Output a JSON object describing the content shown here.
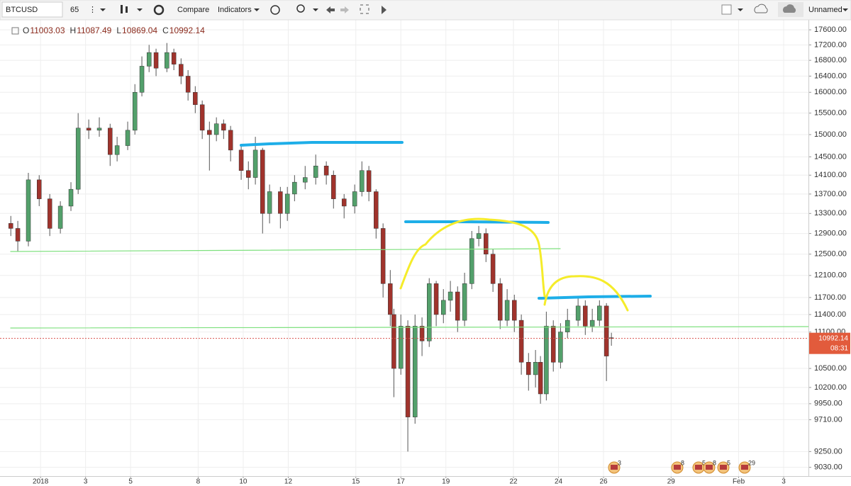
{
  "toolbar": {
    "symbol": "BTCUSD",
    "interval": "65",
    "compare": "Compare",
    "indicators": "Indicators",
    "layout_name": "Unnamed"
  },
  "chart_data": {
    "type": "candlestick",
    "log_scale": true,
    "grid": true,
    "ohlc_labels": [
      "O",
      "H",
      "L",
      "C"
    ],
    "up_color": "#53a06b",
    "down_color": "#a0332c",
    "wick_color": "#555555",
    "x": [
      -0.32,
      -0.01,
      0.46,
      0.94,
      1.41,
      1.88,
      2.35,
      2.67,
      3.14,
      3.61,
      4.09,
      4.4,
      4.87,
      5.19,
      5.5,
      5.82,
      6.13,
      6.61,
      6.92,
      7.24,
      7.55,
      7.87,
      8.18,
      8.5,
      8.81,
      9.13,
      9.44,
      9.91,
      10.23,
      10.54,
      10.86,
      11.17,
      11.65,
      11.96,
      12.28,
      12.75,
      13.22,
      13.69,
      14.01,
      14.48,
      14.95,
      15.27,
      15.58,
      15.9,
      16.21,
      16.53,
      16.69,
      17,
      17.31,
      17.63,
      17.94,
      18.26,
      18.57,
      18.89,
      19.2,
      19.52,
      19.83,
      20.15,
      20.46,
      20.78,
      21.09,
      21.41,
      21.72,
      22.04,
      22.35,
      22.67,
      22.98,
      23.2,
      23.46,
      23.77,
      24.09,
      24.4,
      24.87,
      25.19,
      25.5,
      25.82,
      26.13,
      26.35
    ],
    "open": [
      13100,
      13000,
      12750,
      14000,
      13600,
      13000,
      13450,
      13800,
      15150,
      15100,
      15150,
      14550,
      14750,
      15100,
      16000,
      16650,
      17000,
      16600,
      17000,
      16700,
      16400,
      16000,
      15700,
      15100,
      15000,
      15250,
      15100,
      14650,
      14200,
      14050,
      14650,
      13300,
      13750,
      13300,
      13700,
      13950,
      14050,
      14300,
      14100,
      13600,
      13450,
      13750,
      14200,
      13750,
      13000,
      11950,
      11400,
      10500,
      11200,
      9750,
      11200,
      10950,
      11950,
      11400,
      11650,
      11800,
      11300,
      11950,
      12800,
      12900,
      12500,
      11950,
      11300,
      11650,
      11300,
      10600,
      10400,
      10600,
      10100,
      11200,
      10600,
      11100,
      11300,
      11550,
      11200,
      11300,
      11550,
      11003.03
    ],
    "high": [
      13250,
      13150,
      14150,
      14100,
      13700,
      13550,
      13950,
      15500,
      15350,
      15400,
      15250,
      14950,
      15300,
      16200,
      16900,
      17200,
      17100,
      17250,
      17100,
      16850,
      16550,
      16150,
      15800,
      15300,
      15400,
      15350,
      15200,
      14750,
      14400,
      14950,
      14700,
      13900,
      13850,
      13850,
      14100,
      14300,
      14550,
      14400,
      14200,
      13700,
      13900,
      14400,
      14300,
      13800,
      13100,
      12200,
      11500,
      11400,
      11300,
      11400,
      11350,
      12050,
      12000,
      11850,
      12000,
      11900,
      12150,
      12950,
      13050,
      13000,
      12600,
      12050,
      11850,
      11750,
      11400,
      10750,
      10800,
      10700,
      11450,
      11300,
      11250,
      11500,
      11700,
      11650,
      11500,
      11650,
      11600,
      11087.49
    ],
    "low": [
      12850,
      12550,
      12650,
      13450,
      12850,
      12900,
      13350,
      13700,
      14900,
      14950,
      14300,
      14400,
      14650,
      15000,
      15900,
      16500,
      16400,
      16500,
      16550,
      16200,
      15800,
      15500,
      14900,
      14200,
      14850,
      14900,
      14400,
      14000,
      13800,
      13900,
      12900,
      13100,
      13000,
      13150,
      13550,
      13800,
      13900,
      13900,
      13400,
      13200,
      13300,
      13650,
      13550,
      12800,
      11700,
      11200,
      10050,
      10400,
      9250,
      9650,
      10700,
      10850,
      11200,
      11250,
      11450,
      11100,
      11200,
      11850,
      12650,
      12350,
      11800,
      11150,
      11200,
      11100,
      10400,
      10150,
      10200,
      9950,
      10000,
      10450,
      10500,
      11000,
      11200,
      11050,
      11100,
      11200,
      10300,
      10869.04
    ],
    "close": [
      13000,
      12750,
      14000,
      13600,
      13000,
      13450,
      13800,
      15150,
      15100,
      15150,
      14550,
      14750,
      15100,
      16000,
      16650,
      17000,
      16600,
      17000,
      16700,
      16400,
      16000,
      15700,
      15100,
      15000,
      15250,
      15100,
      14650,
      14200,
      14050,
      14650,
      13300,
      13750,
      13300,
      13700,
      13950,
      14050,
      14300,
      14100,
      13600,
      13450,
      13750,
      14200,
      13750,
      13000,
      11950,
      11400,
      10500,
      11200,
      9750,
      11200,
      10950,
      11950,
      11400,
      11650,
      11800,
      11300,
      11950,
      12800,
      12900,
      12500,
      11950,
      11300,
      11650,
      11300,
      10600,
      10400,
      10600,
      10100,
      11200,
      10600,
      11100,
      11300,
      11550,
      11200,
      11300,
      11550,
      10700,
      10992.14
    ],
    "countdown": "08:31",
    "xlim": [
      -0.8,
      35.1
    ],
    "xticks": [
      {
        "value": 1,
        "label": "2018"
      },
      3,
      5,
      8,
      10,
      12,
      15,
      17,
      19,
      22,
      24,
      26,
      29,
      {
        "value": 32,
        "label": "Feb"
      },
      {
        "value": 34,
        "label": "3"
      }
    ],
    "ylim": [
      8910,
      17870
    ],
    "yticks": [
      {
        "value": 17600,
        "label": "17600.00"
      },
      {
        "value": 17200,
        "label": "17200.00"
      },
      {
        "value": 16800,
        "label": "16800.00"
      },
      {
        "value": 16400,
        "label": "16400.00"
      },
      {
        "value": 16000,
        "label": "16000.00"
      },
      {
        "value": 15500,
        "label": "15500.00"
      },
      {
        "value": 15000,
        "label": "15000.00"
      },
      {
        "value": 14500,
        "label": "14500.00"
      },
      {
        "value": 14100,
        "label": "14100.00"
      },
      {
        "value": 13700,
        "label": "13700.00"
      },
      {
        "value": 13300,
        "label": "13300.00"
      },
      {
        "value": 12900,
        "label": "12900.00"
      },
      {
        "value": 12500,
        "label": "12500.00"
      },
      {
        "value": 12100,
        "label": "12100.00"
      },
      {
        "value": 11700,
        "label": "11700.00"
      },
      {
        "value": 11400,
        "label": "11400.00"
      },
      {
        "value": 11100,
        "label": "11100.00"
      },
      {
        "value": 10500,
        "label": "10500.00"
      },
      {
        "value": 10200,
        "label": "10200.00"
      },
      {
        "value": 9950,
        "label": "9950.00"
      },
      {
        "value": 9710,
        "label": "9710.00"
      },
      {
        "value": 9250,
        "label": "9250.00"
      },
      {
        "value": 9030,
        "label": "9030.00"
      }
    ],
    "events": [
      3,
      8,
      5,
      8,
      5,
      29
    ]
  }
}
